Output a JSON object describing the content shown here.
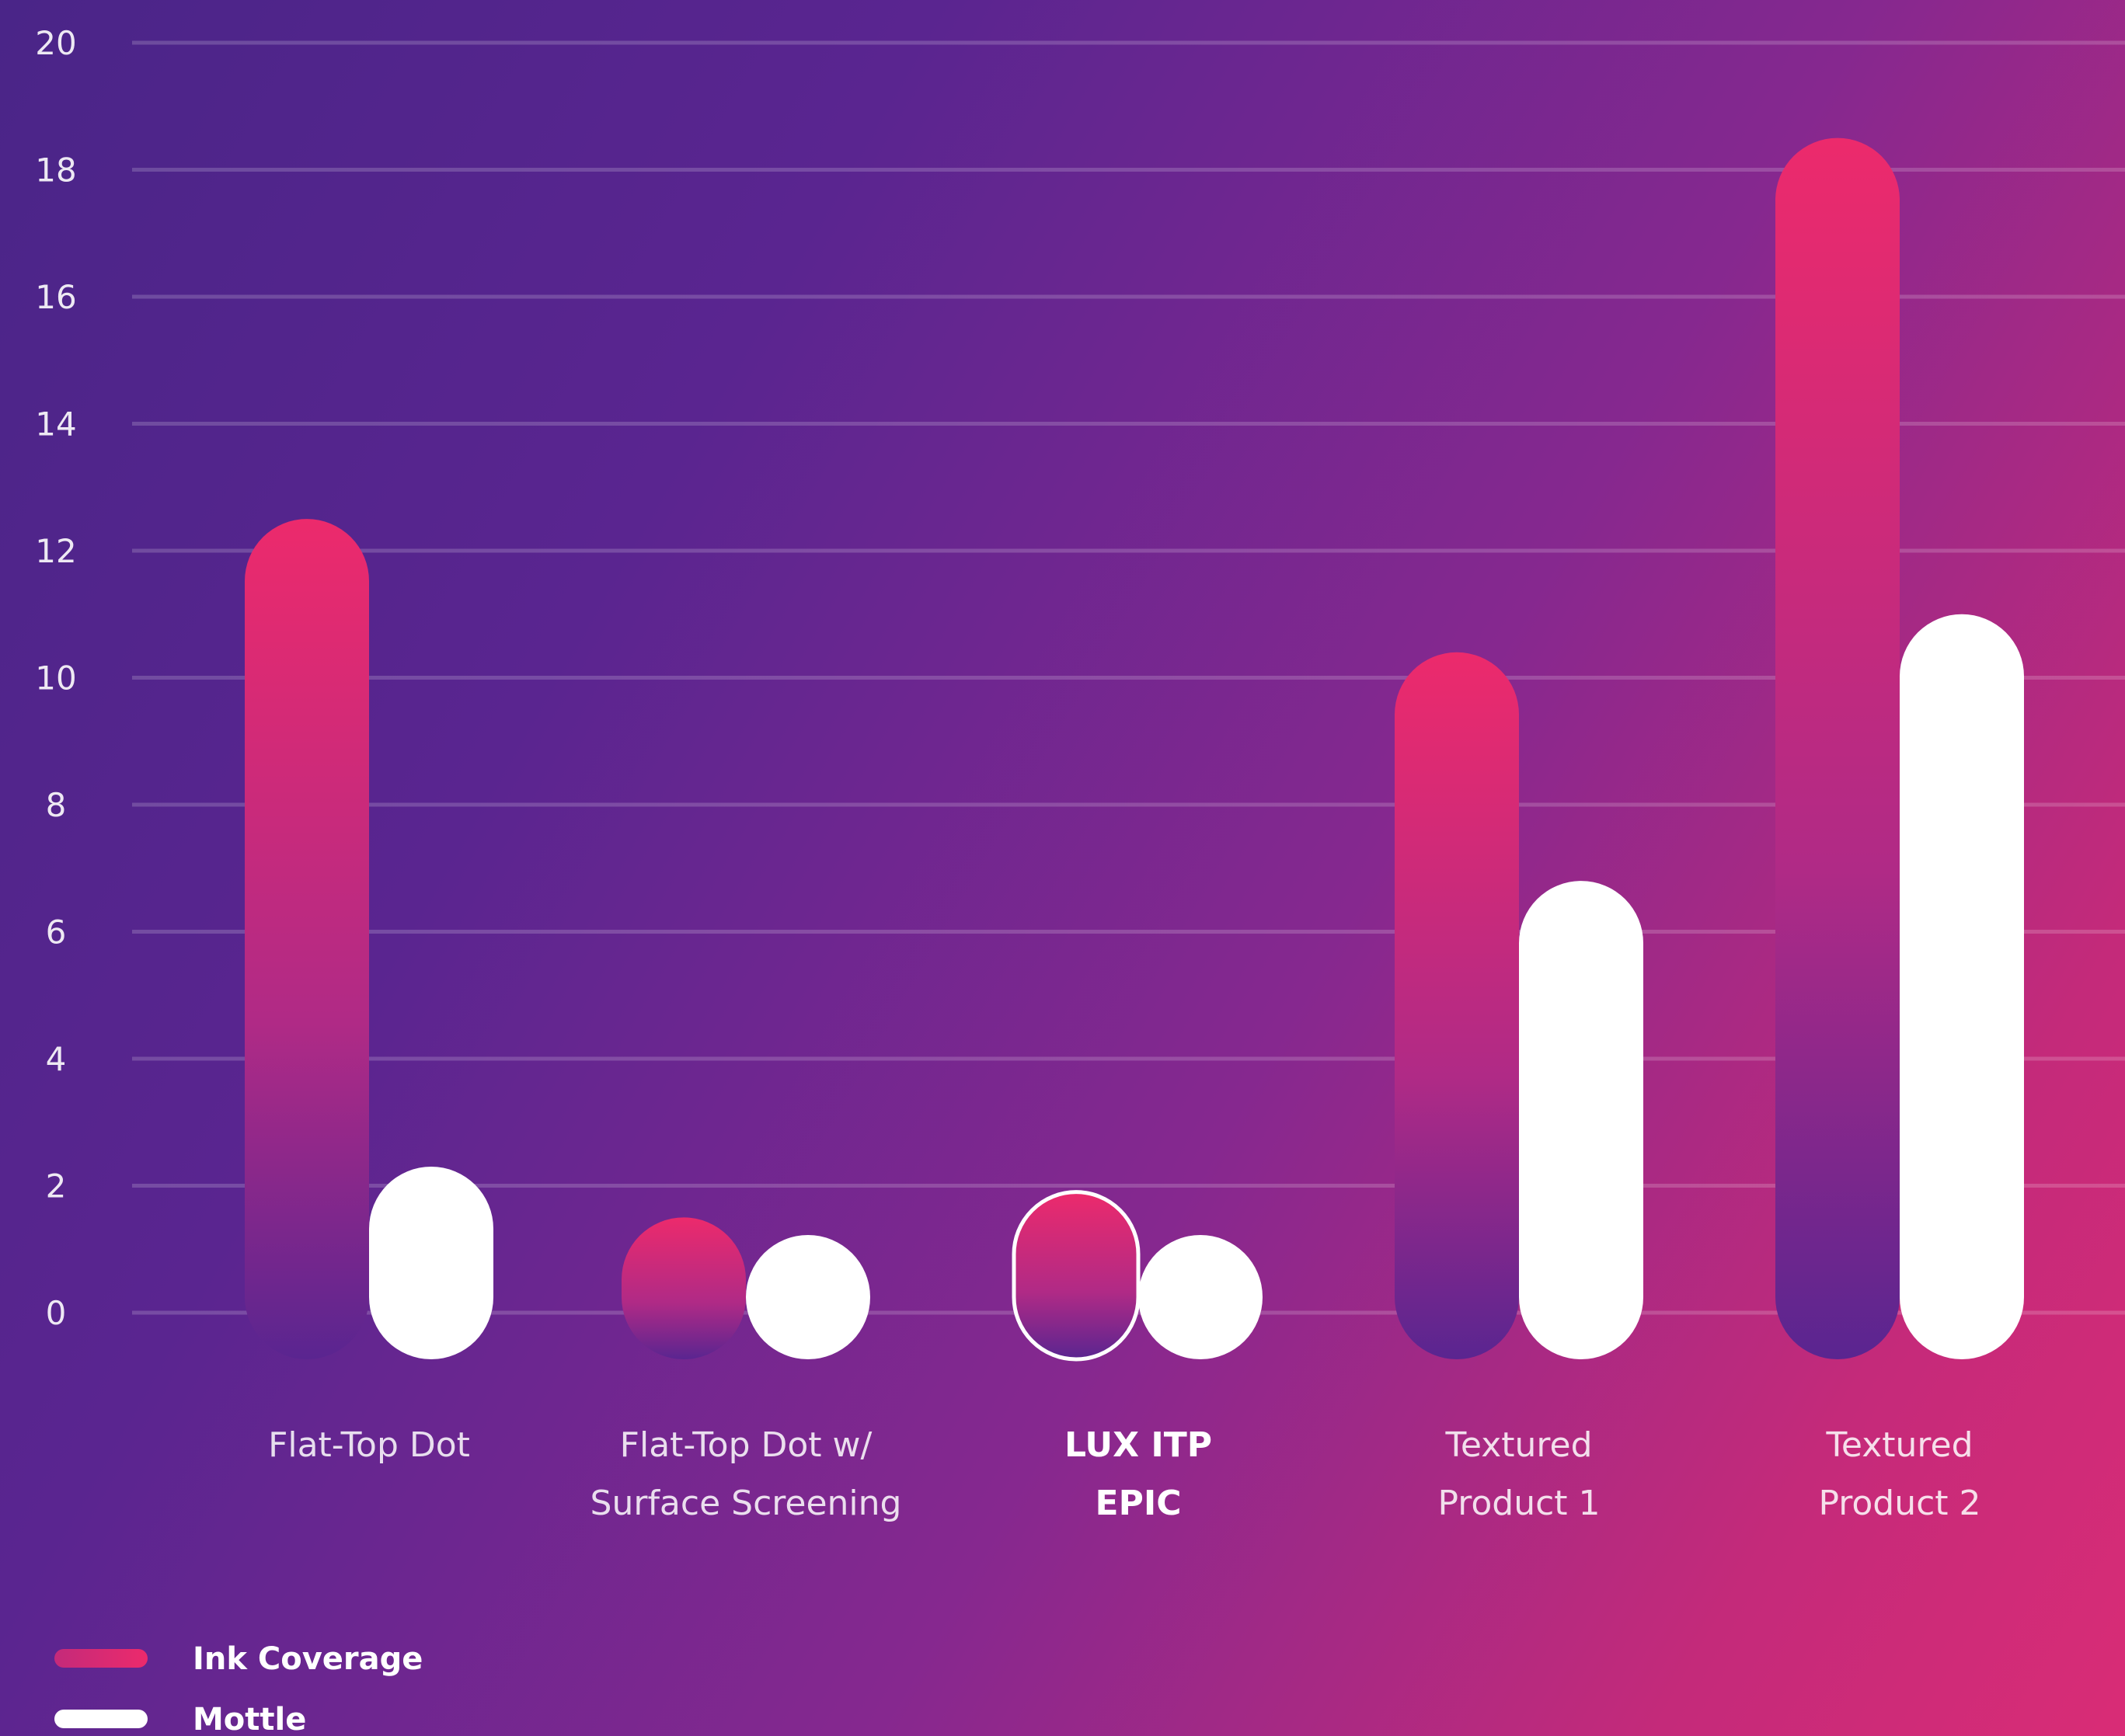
{
  "chart_data": {
    "type": "bar",
    "categories": [
      [
        "Flat-Top Dot"
      ],
      [
        "Flat-Top Dot w/",
        "Surface Screening"
      ],
      [
        "LUX ITP",
        "EPIC"
      ],
      [
        "Textured",
        "Product 1"
      ],
      [
        "Textured",
        "Product 2"
      ]
    ],
    "highlight_category": 2,
    "series": [
      {
        "name": "Ink Coverage",
        "values": [
          12.5,
          1.5,
          1.9,
          10.4,
          18.5
        ],
        "color": "#ec2a6c"
      },
      {
        "name": "Mottle",
        "values": [
          2.3,
          0.9,
          1.0,
          6.8,
          11.0
        ],
        "color": "#ffffff"
      }
    ],
    "yticks": [
      "0",
      "2",
      "4",
      "6",
      "8",
      "10",
      "12",
      "14",
      "16",
      "18",
      "20"
    ],
    "ylim": [
      0,
      20
    ],
    "grid": true,
    "legend_position": "bottom-left",
    "title": "",
    "xlabel": "",
    "ylabel": ""
  }
}
